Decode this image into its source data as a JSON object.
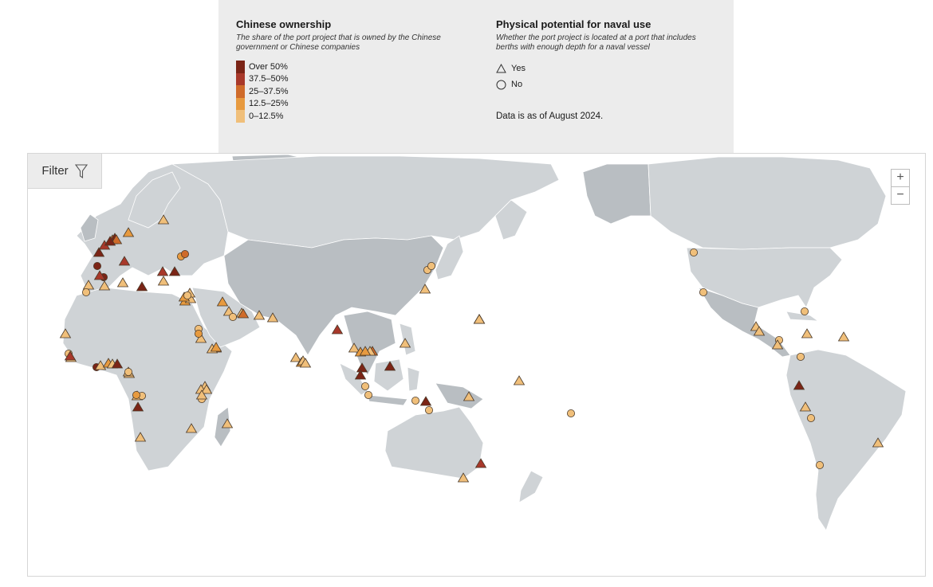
{
  "legend": {
    "ownership": {
      "title": "Chinese ownership",
      "description": "The share of the port project that is owned by the Chinese government or Chinese companies",
      "bins": [
        {
          "label": "Over 50%",
          "color": "#7b2416"
        },
        {
          "label": "37.5–50%",
          "color": "#a8382a"
        },
        {
          "label": "25–37.5%",
          "color": "#cf6b2a"
        },
        {
          "label": "12.5–25%",
          "color": "#e79a3f"
        },
        {
          "label": "0–12.5%",
          "color": "#f0bf7a"
        }
      ]
    },
    "naval": {
      "title": "Physical potential for naval use",
      "description": "Whether the port project is located at a port that includes berths with enough depth for a naval vessel",
      "yes_label": "Yes",
      "no_label": "No"
    },
    "as_of": "Data is as of August 2024."
  },
  "controls": {
    "filter_label": "Filter",
    "filter_icon": "funnel-icon",
    "zoom_in": "+",
    "zoom_out": "−"
  },
  "map_colors": {
    "land": "#cfd3d6",
    "land_highlight": "#b9bec2",
    "water": "#ffffff"
  },
  "ports": [
    {
      "c": "#7b2416",
      "s": "t"
    },
    {
      "c": "#a8382a",
      "s": "t"
    },
    {
      "c": "#cf6b2a",
      "s": "t"
    },
    {
      "c": "#e79a3f",
      "s": "t"
    },
    {
      "c": "#7b2416",
      "s": "c"
    },
    {
      "c": "#7b2416",
      "s": "c"
    },
    {
      "c": "#a8382a",
      "s": "t"
    },
    {
      "c": "#f0bf7a",
      "s": "t"
    },
    {
      "c": "#f0bf7a",
      "s": "t"
    },
    {
      "c": "#f0bf7a",
      "s": "c"
    },
    {
      "c": "#a8382a",
      "s": "t"
    },
    {
      "c": "#7b2416",
      "s": "t"
    },
    {
      "c": "#cf6b2a",
      "s": "t"
    },
    {
      "c": "#7b2416",
      "s": "t"
    },
    {
      "c": "#f0bf7a",
      "s": "t"
    },
    {
      "c": "#f0bf7a",
      "s": "t"
    },
    {
      "c": "#e79a3f",
      "s": "c"
    },
    {
      "c": "#a8382a",
      "s": "t"
    },
    {
      "c": "#7b2416",
      "s": "t"
    },
    {
      "c": "#f0bf7a",
      "s": "t"
    },
    {
      "c": "#cf6b2a",
      "s": "c"
    },
    {
      "c": "#e79a3f",
      "s": "t"
    },
    {
      "c": "#f0bf7a",
      "s": "t"
    },
    {
      "c": "#7b2416",
      "s": "t"
    },
    {
      "c": "#e79a3f",
      "s": "t"
    },
    {
      "c": "#f0bf7a",
      "s": "t"
    },
    {
      "c": "#f0bf7a",
      "s": "t"
    },
    {
      "c": "#f0bf7a",
      "s": "c"
    },
    {
      "c": "#f0bf7a",
      "s": "t"
    },
    {
      "c": "#a8382a",
      "s": "t"
    },
    {
      "c": "#e79a3f",
      "s": "t"
    },
    {
      "c": "#f0bf7a",
      "s": "c"
    },
    {
      "c": "#f0bf7a",
      "s": "t"
    },
    {
      "c": "#cf6b2a",
      "s": "t"
    },
    {
      "c": "#f0bf7a",
      "s": "t"
    },
    {
      "c": "#f0bf7a",
      "s": "c"
    },
    {
      "c": "#f0bf7a",
      "s": "t"
    },
    {
      "c": "#7b2416",
      "s": "c"
    },
    {
      "c": "#f0bf7a",
      "s": "t"
    },
    {
      "c": "#e79a3f",
      "s": "t"
    },
    {
      "c": "#f0bf7a",
      "s": "t"
    },
    {
      "c": "#7b2416",
      "s": "t"
    },
    {
      "c": "#f0bf7a",
      "s": "t"
    },
    {
      "c": "#f0bf7a",
      "s": "t"
    },
    {
      "c": "#7b2416",
      "s": "t"
    },
    {
      "c": "#f0bf7a",
      "s": "c"
    },
    {
      "c": "#e79a3f",
      "s": "c"
    },
    {
      "c": "#f0bf7a",
      "s": "t"
    },
    {
      "c": "#f0bf7a",
      "s": "t"
    },
    {
      "c": "#f0bf7a",
      "s": "t"
    },
    {
      "c": "#f0bf7a",
      "s": "c"
    },
    {
      "c": "#f0bf7a",
      "s": "t"
    },
    {
      "c": "#f0bf7a",
      "s": "t"
    },
    {
      "c": "#f0bf7a",
      "s": "t"
    },
    {
      "c": "#e79a3f",
      "s": "c"
    },
    {
      "c": "#f0bf7a",
      "s": "t"
    },
    {
      "c": "#e79a3f",
      "s": "t"
    },
    {
      "c": "#f0bf7a",
      "s": "t"
    },
    {
      "c": "#cf6b2a",
      "s": "t"
    },
    {
      "c": "#f0bf7a",
      "s": "t"
    },
    {
      "c": "#f0bf7a",
      "s": "t"
    },
    {
      "c": "#e79a3f",
      "s": "t"
    },
    {
      "c": "#f0bf7a",
      "s": "t"
    },
    {
      "c": "#f0bf7a",
      "s": "t"
    },
    {
      "c": "#f0bf7a",
      "s": "c"
    },
    {
      "c": "#f0bf7a",
      "s": "t"
    },
    {
      "c": "#e79a3f",
      "s": "t"
    },
    {
      "c": "#7b2416",
      "s": "t"
    },
    {
      "c": "#7b2416",
      "s": "t"
    },
    {
      "c": "#cf6b2a",
      "s": "t"
    },
    {
      "c": "#f0bf7a",
      "s": "t"
    },
    {
      "c": "#e79a3f",
      "s": "t"
    },
    {
      "c": "#a8382a",
      "s": "t"
    },
    {
      "c": "#7b2416",
      "s": "t"
    },
    {
      "c": "#f0bf7a",
      "s": "c"
    },
    {
      "c": "#f0bf7a",
      "s": "c"
    },
    {
      "c": "#f0bf7a",
      "s": "t"
    },
    {
      "c": "#7b2416",
      "s": "t"
    },
    {
      "c": "#f0bf7a",
      "s": "t"
    },
    {
      "c": "#f0bf7a",
      "s": "c"
    },
    {
      "c": "#f0bf7a",
      "s": "t"
    },
    {
      "c": "#f0bf7a",
      "s": "c"
    },
    {
      "c": "#f0bf7a",
      "s": "c"
    },
    {
      "c": "#f0bf7a",
      "s": "t"
    },
    {
      "c": "#f0bf7a",
      "s": "c"
    },
    {
      "c": "#f0bf7a",
      "s": "c"
    },
    {
      "c": "#f0bf7a",
      "s": "t"
    },
    {
      "c": "#a8382a",
      "s": "t"
    },
    {
      "c": "#f0bf7a",
      "s": "t"
    },
    {
      "c": "#f0bf7a",
      "s": "c"
    },
    {
      "c": "#f0bf7a",
      "s": "c"
    },
    {
      "c": "#f0bf7a",
      "s": "c"
    },
    {
      "c": "#f0bf7a",
      "s": "t"
    },
    {
      "c": "#f0bf7a",
      "s": "t"
    },
    {
      "c": "#f0bf7a",
      "s": "c"
    },
    {
      "c": "#f0bf7a",
      "s": "t"
    },
    {
      "c": "#f0bf7a",
      "s": "t"
    },
    {
      "c": "#f0bf7a",
      "s": "c"
    },
    {
      "c": "#7b2416",
      "s": "t"
    },
    {
      "c": "#f0bf7a",
      "s": "c"
    },
    {
      "c": "#f0bf7a",
      "s": "t"
    },
    {
      "c": "#f0bf7a",
      "s": "t"
    },
    {
      "c": "#f0bf7a",
      "s": "c"
    },
    {
      "c": "#f0bf7a",
      "s": "t"
    },
    {
      "c": "#f0bf7a",
      "s": "t"
    },
    {
      "c": "#f0bf7a",
      "s": "c"
    },
    {
      "c": "#7b2416",
      "s": "t"
    },
    {
      "c": "#f0bf7a",
      "s": "t"
    },
    {
      "c": "#7b2416",
      "s": "t"
    },
    {
      "c": "#f0bf7a",
      "s": "t"
    }
  ]
}
